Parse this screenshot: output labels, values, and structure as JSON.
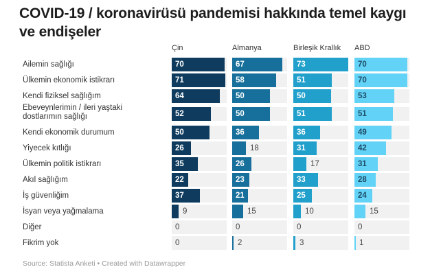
{
  "title": "COVID-19 / koronavirüsü pandemisi hakkında temel kaygı ve endişeler",
  "source": "Source: Statista Anketi • Created with Datawrapper",
  "columns": [
    {
      "label": "Çin",
      "color": "#0e3b5e",
      "text_light": false
    },
    {
      "label": "Almanya",
      "color": "#17709b",
      "text_light": false
    },
    {
      "label": "Birleşik Krallık",
      "color": "#21a0cc",
      "text_light": false
    },
    {
      "label": "ABD",
      "color": "#62d3f6",
      "text_light": true
    }
  ],
  "rows": [
    {
      "label": "Ailemin sağlığı",
      "values": [
        70,
        67,
        73,
        70
      ]
    },
    {
      "label": "Ülkemin ekonomik istikrarı",
      "values": [
        71,
        58,
        51,
        70
      ]
    },
    {
      "label": "Kendi fiziksel sağlığım",
      "values": [
        64,
        50,
        50,
        53
      ]
    },
    {
      "label": "Ebeveynlerimin / ileri yaştaki dostlarımın sağlığı",
      "values": [
        52,
        50,
        51,
        51
      ]
    },
    {
      "label": "Kendi ekonomik durumum",
      "values": [
        50,
        36,
        36,
        49
      ]
    },
    {
      "label": "Yiyecek kıtlığı",
      "values": [
        26,
        18,
        31,
        42
      ]
    },
    {
      "label": "Ülkemin politik istikrarı",
      "values": [
        35,
        26,
        17,
        31
      ]
    },
    {
      "label": "Akıl sağlığım",
      "values": [
        22,
        23,
        33,
        28
      ]
    },
    {
      "label": "İş güvenliğim",
      "values": [
        37,
        21,
        25,
        24
      ]
    },
    {
      "label": "İsyan veya yağmalama",
      "values": [
        9,
        15,
        10,
        15
      ]
    },
    {
      "label": "Diğer",
      "values": [
        0,
        0,
        0,
        0
      ]
    },
    {
      "label": "Fikrim yok",
      "values": [
        0,
        2,
        3,
        1
      ]
    }
  ],
  "chart_data": {
    "type": "bar",
    "title": "COVID-19 / koronavirüsü pandemisi hakkında temel kaygı ve endişeler",
    "orientation": "horizontal",
    "layout": "small-multiples",
    "categories": [
      "Ailemin sağlığı",
      "Ülkemin ekonomik istikrarı",
      "Kendi fiziksel sağlığım",
      "Ebeveynlerimin / ileri yaştaki dostlarımın sağlığı",
      "Kendi ekonomik durumum",
      "Yiyecek kıtlığı",
      "Ülkemin politik istikrarı",
      "Akıl sağlığım",
      "İş güvenliğim",
      "İsyan veya yağmalama",
      "Diğer",
      "Fikrim yok"
    ],
    "series": [
      {
        "name": "Çin",
        "values": [
          70,
          71,
          64,
          52,
          50,
          26,
          35,
          22,
          37,
          9,
          0,
          0
        ]
      },
      {
        "name": "Almanya",
        "values": [
          67,
          58,
          50,
          50,
          36,
          18,
          26,
          23,
          21,
          15,
          0,
          2
        ]
      },
      {
        "name": "Birleşik Krallık",
        "values": [
          73,
          51,
          50,
          51,
          36,
          31,
          17,
          33,
          25,
          10,
          0,
          3
        ]
      },
      {
        "name": "ABD",
        "values": [
          70,
          70,
          53,
          51,
          49,
          42,
          31,
          28,
          24,
          15,
          0,
          1
        ]
      }
    ],
    "xlabel": "",
    "ylabel": "",
    "xlim": [
      0,
      73
    ],
    "grid": false,
    "legend": "column headers",
    "source": "Source: Statista Anketi • Created with Datawrapper"
  }
}
